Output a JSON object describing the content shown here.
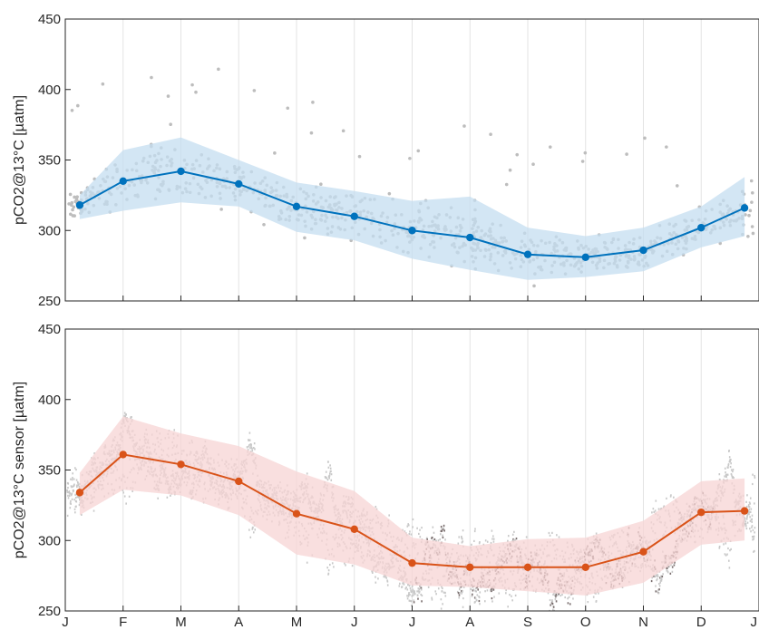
{
  "chart_data": [
    {
      "type": "line",
      "title": "",
      "xlabel": "",
      "ylabel": "pCO2@13°C [µatm]",
      "ylim": [
        250,
        450
      ],
      "yticks": [
        250,
        300,
        350,
        400,
        450
      ],
      "xlim": [
        0,
        12
      ],
      "xtick_positions": [
        0,
        1,
        2,
        3,
        4,
        5,
        6,
        7,
        8,
        9,
        10,
        11,
        12
      ],
      "xtick_labels": [
        "J",
        "F",
        "M",
        "A",
        "M",
        "J",
        "J",
        "A",
        "S",
        "O",
        "N",
        "D",
        "J"
      ],
      "show_xtick_labels": false,
      "grid": "vertical",
      "legend": "none",
      "colors": {
        "line": "#0072BD",
        "band": "#c4ddf0",
        "scatter": "#bdbdbd"
      },
      "series": [
        {
          "role": "monthly-mean",
          "x": [
            0.25,
            1,
            2,
            3,
            4,
            5,
            6,
            7,
            8,
            9,
            10,
            11,
            11.75
          ],
          "y": [
            318,
            335,
            342,
            333,
            317,
            310,
            300,
            295,
            283,
            281,
            286,
            302,
            316
          ]
        },
        {
          "role": "band-upper",
          "x": [
            0.25,
            1,
            2,
            3,
            4,
            5,
            6,
            7,
            8,
            9,
            10,
            11,
            11.75
          ],
          "y": [
            325,
            357,
            366,
            350,
            334,
            328,
            321,
            324,
            302,
            296,
            302,
            317,
            338
          ]
        },
        {
          "role": "band-lower",
          "x": [
            0.25,
            1,
            2,
            3,
            4,
            5,
            6,
            7,
            8,
            9,
            10,
            11,
            11.75
          ],
          "y": [
            308,
            314,
            320,
            317,
            299,
            293,
            280,
            272,
            265,
            267,
            271,
            288,
            296
          ]
        }
      ]
    },
    {
      "type": "line",
      "title": "",
      "xlabel": "",
      "ylabel": "pCO2@13°C sensor [µatm]",
      "ylim": [
        250,
        450
      ],
      "yticks": [
        250,
        300,
        350,
        400,
        450
      ],
      "xlim": [
        0,
        12
      ],
      "xtick_positions": [
        0,
        1,
        2,
        3,
        4,
        5,
        6,
        7,
        8,
        9,
        10,
        11,
        12
      ],
      "xtick_labels": [
        "J",
        "F",
        "M",
        "A",
        "M",
        "J",
        "J",
        "A",
        "S",
        "O",
        "N",
        "D",
        "J"
      ],
      "show_xtick_labels": true,
      "grid": "vertical",
      "legend": "none",
      "colors": {
        "line": "#D95319",
        "band": "#f7d4d4",
        "scatter": "#c8c8c8",
        "scatter_dark": "#7a6e6e"
      },
      "series": [
        {
          "role": "monthly-mean",
          "x": [
            0.25,
            1,
            2,
            3,
            4,
            5,
            6,
            7,
            8,
            9,
            10,
            11,
            11.75
          ],
          "y": [
            334,
            361,
            354,
            342,
            319,
            308,
            284,
            281,
            281,
            281,
            292,
            320,
            321
          ]
        },
        {
          "role": "band-upper",
          "x": [
            0.25,
            1,
            2,
            3,
            4,
            5,
            6,
            7,
            8,
            9,
            10,
            11,
            11.75
          ],
          "y": [
            348,
            388,
            376,
            367,
            349,
            335,
            302,
            296,
            301,
            302,
            314,
            342,
            344
          ]
        },
        {
          "role": "band-lower",
          "x": [
            0.25,
            1,
            2,
            3,
            4,
            5,
            6,
            7,
            8,
            9,
            10,
            11,
            11.75
          ],
          "y": [
            318,
            336,
            332,
            318,
            290,
            283,
            268,
            267,
            264,
            261,
            270,
            297,
            300
          ]
        }
      ]
    }
  ]
}
